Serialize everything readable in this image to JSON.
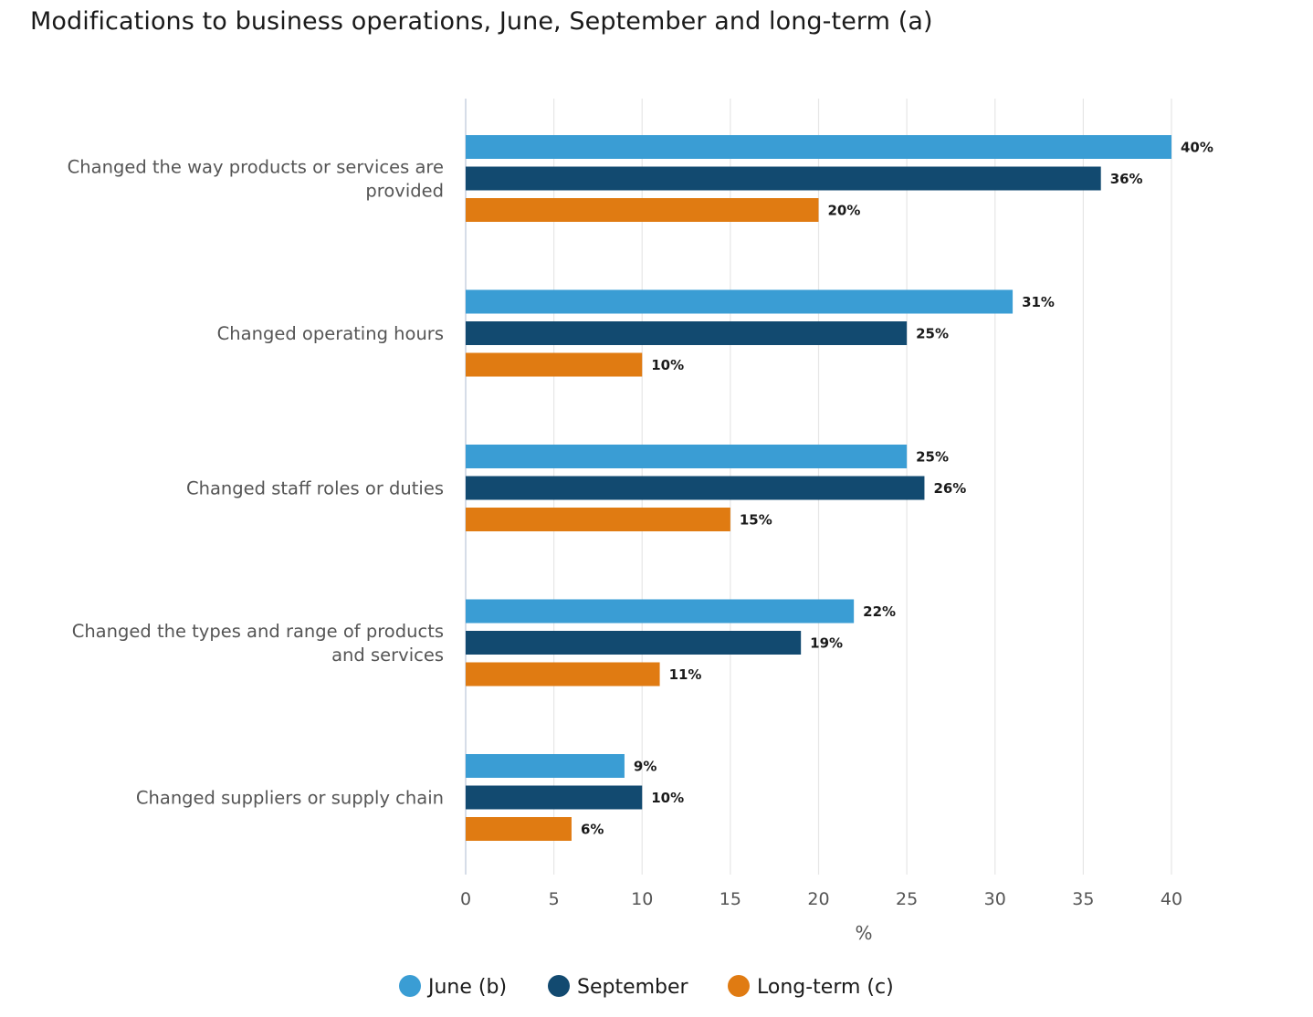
{
  "chart_data": {
    "type": "bar",
    "orientation": "horizontal",
    "title": "Modifications to business operations, June, September and long-term (a)",
    "xlabel": "%",
    "ylabel": "",
    "xlim": [
      0,
      40
    ],
    "ticks": [
      0,
      5,
      10,
      15,
      20,
      25,
      30,
      35,
      40
    ],
    "grid": true,
    "legend_position": "bottom",
    "categories": [
      [
        "Changed the way products or services are",
        "provided"
      ],
      [
        "Changed operating hours"
      ],
      [
        "Changed staff roles or duties"
      ],
      [
        "Changed the types and range of products",
        "and services"
      ],
      [
        "Changed suppliers or supply chain"
      ]
    ],
    "series": [
      {
        "name": "June (b)",
        "color": "#3a9dd4",
        "values": [
          40,
          31,
          25,
          22,
          9
        ],
        "labels": [
          "40%",
          "31%",
          "25%",
          "22%",
          "9%"
        ]
      },
      {
        "name": "September",
        "color": "#124a70",
        "values": [
          36,
          25,
          26,
          19,
          10
        ],
        "labels": [
          "36%",
          "25%",
          "26%",
          "19%",
          "10%"
        ]
      },
      {
        "name": "Long-term (c)",
        "color": "#e07b12",
        "values": [
          20,
          10,
          15,
          11,
          6
        ],
        "labels": [
          "20%",
          "10%",
          "15%",
          "11%",
          "6%"
        ]
      }
    ]
  }
}
